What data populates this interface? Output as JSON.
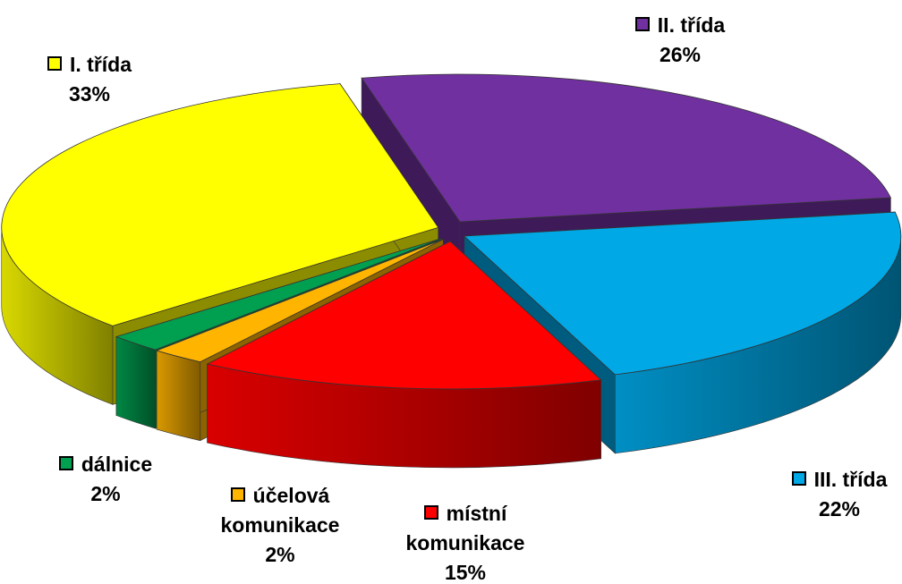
{
  "chart_data": {
    "type": "pie",
    "categories": [
      "II. třída",
      "III. třída",
      "místní komunikace",
      "účelová komunikace",
      "dálnice",
      "I. třída"
    ],
    "values": [
      26,
      22,
      15,
      2,
      2,
      33
    ],
    "value_labels": [
      "26%",
      "22%",
      "15%",
      "2%",
      "2%",
      "33%"
    ],
    "colors": [
      "#7030a0",
      "#00a8e6",
      "#ff0000",
      "#ffb400",
      "#00a050",
      "#ffff00"
    ],
    "three_d": true
  }
}
